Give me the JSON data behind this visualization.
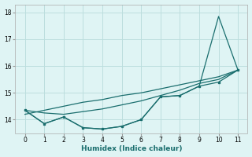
{
  "xlabel": "Humidex (Indice chaleur)",
  "x": [
    0,
    1,
    2,
    3,
    4,
    5,
    6,
    7,
    8,
    9,
    10,
    11
  ],
  "y_zigzag": [
    14.35,
    13.85,
    14.1,
    13.7,
    13.65,
    13.75,
    14.0,
    14.85,
    14.9,
    15.25,
    15.4,
    15.85
  ],
  "y_spike": [
    14.35,
    13.85,
    14.1,
    13.7,
    13.65,
    13.75,
    14.0,
    14.85,
    14.9,
    15.25,
    17.85,
    15.85
  ],
  "y_smooth": [
    14.35,
    14.25,
    14.2,
    14.3,
    14.4,
    14.55,
    14.7,
    14.9,
    15.1,
    15.35,
    15.5,
    15.85
  ],
  "y_linear": [
    14.2,
    14.35,
    14.5,
    14.65,
    14.75,
    14.9,
    15.0,
    15.15,
    15.3,
    15.45,
    15.6,
    15.85
  ],
  "line_color": "#1a6e6e",
  "bg_color": "#dff4f4",
  "grid_color": "#bcdede",
  "ylim": [
    13.5,
    18.3
  ],
  "xlim": [
    -0.5,
    11.5
  ],
  "yticks": [
    14,
    15,
    16,
    17,
    18
  ],
  "xticks": [
    0,
    1,
    2,
    3,
    4,
    5,
    6,
    7,
    8,
    9,
    10,
    11
  ]
}
